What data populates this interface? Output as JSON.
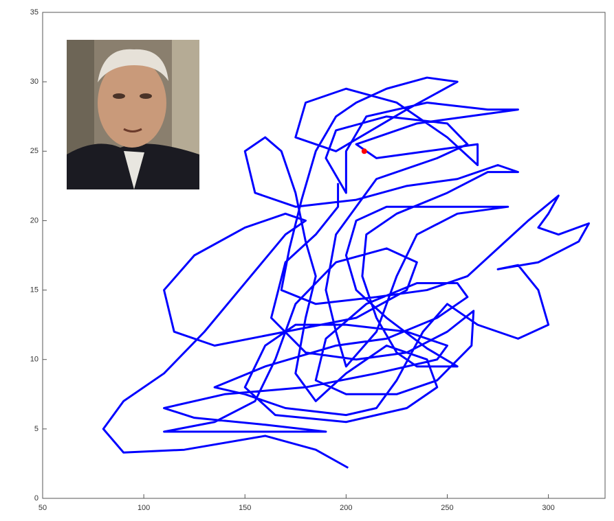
{
  "chart_data": {
    "type": "line",
    "x": [
      201,
      185,
      160,
      120,
      90,
      80,
      90,
      110,
      130,
      150,
      170,
      180,
      170,
      150,
      125,
      110,
      115,
      135,
      170,
      205,
      230,
      235,
      220,
      195,
      175,
      165,
      155,
      135,
      110,
      140,
      190,
      160,
      125,
      110,
      140,
      180,
      215,
      245,
      250,
      230,
      200,
      175,
      160,
      150,
      165,
      200,
      230,
      245,
      240,
      220,
      200,
      185,
      175,
      180,
      185,
      180,
      175,
      168,
      160,
      150,
      155,
      175,
      205,
      230,
      255,
      275,
      285,
      270,
      250,
      225,
      210,
      208,
      215,
      225,
      235,
      255,
      240,
      220,
      205,
      200,
      205,
      220,
      245,
      265,
      280,
      255,
      235,
      225,
      215,
      200,
      195,
      190,
      195,
      215,
      245,
      260,
      250,
      220,
      195,
      190,
      200,
      200,
      210,
      240,
      270,
      285,
      260,
      235,
      215,
      205,
      215,
      240,
      265,
      265,
      250,
      225,
      200,
      180,
      175,
      195,
      230,
      255,
      240,
      220,
      205,
      195,
      185,
      178,
      172,
      168,
      185,
      215,
      240,
      260,
      275,
      290,
      305,
      300,
      295,
      305,
      320,
      315,
      295,
      275,
      285,
      295,
      300,
      285,
      265,
      250,
      238,
      225,
      215,
      200,
      170,
      150,
      135,
      160,
      195,
      220,
      245,
      260,
      255,
      235,
      210,
      190,
      185,
      200,
      225,
      245,
      262,
      263,
      250,
      230,
      205,
      180,
      163,
      170,
      185,
      196,
      196
    ],
    "values": [
      2.2,
      3.5,
      4.5,
      3.5,
      3.3,
      5,
      7,
      9,
      12,
      15.5,
      19,
      20,
      20.5,
      19.5,
      17.5,
      15,
      12,
      11,
      12,
      13,
      15,
      17,
      18,
      17,
      14,
      10,
      7,
      5.5,
      4.8,
      4.8,
      4.8,
      5.3,
      5.8,
      6.5,
      7.5,
      8,
      9,
      10,
      11,
      12,
      12.5,
      12.5,
      11,
      8,
      6,
      5.5,
      6.5,
      8,
      10,
      11,
      9,
      7,
      9,
      13,
      16,
      18.5,
      22,
      25,
      26,
      25,
      22,
      21,
      21.5,
      22.5,
      23,
      24,
      23.5,
      23.5,
      22,
      20.5,
      19,
      16,
      13,
      10.5,
      9.5,
      9.5,
      10.8,
      13,
      15,
      17.5,
      20,
      21,
      21,
      21,
      21,
      20.5,
      19,
      16,
      12,
      9.5,
      12,
      15,
      19,
      23,
      24.5,
      25.5,
      27,
      27.5,
      26.5,
      24.5,
      22,
      25,
      27.5,
      28.5,
      28,
      28,
      27.5,
      27,
      26,
      25.5,
      24.5,
      25,
      25.5,
      24,
      26,
      28.5,
      29.5,
      28.5,
      26,
      25,
      28,
      30,
      30.3,
      29.5,
      28.5,
      27.5,
      25,
      21.5,
      18,
      15,
      14,
      14.5,
      15,
      16,
      18,
      20,
      21.8,
      20.5,
      19.5,
      19,
      19.8,
      18.5,
      17,
      16.5,
      16.8,
      15,
      12.5,
      11.5,
      12.5,
      14,
      12,
      8.5,
      6.5,
      6,
      6.5,
      7.5,
      8,
      9.5,
      11,
      11.5,
      13,
      14.5,
      15.5,
      15.5,
      14,
      11.5,
      8.5,
      7.5,
      7.5,
      8.5,
      11,
      13.5,
      12,
      10.5,
      10,
      10.5,
      13,
      17,
      19,
      21,
      22.7
    ],
    "color": "#0000ff",
    "points": [
      {
        "x": 209,
        "y": 25,
        "color": "#ff0000"
      }
    ],
    "xlim": [
      50,
      328
    ],
    "ylim": [
      0,
      35
    ],
    "xticks": [
      50,
      100,
      150,
      200,
      250,
      300
    ],
    "yticks": [
      0,
      5,
      10,
      15,
      20,
      25,
      30,
      35
    ]
  }
}
